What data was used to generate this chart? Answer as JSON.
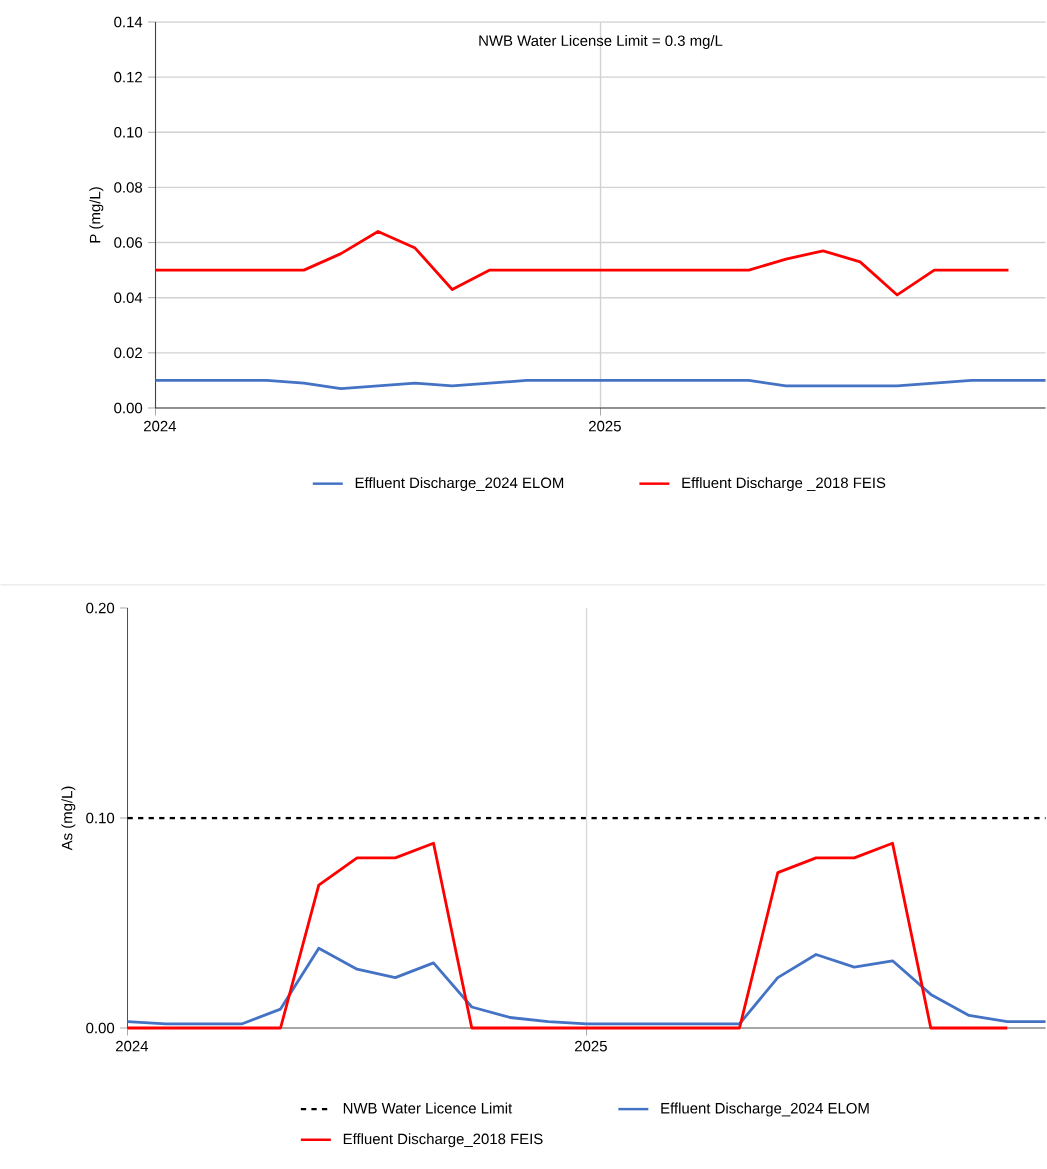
{
  "chart_data": [
    {
      "type": "line",
      "ylabel": "P (mg/L)",
      "annotations": [
        "NWB Water License Limit = 0.3 mg/L"
      ],
      "xlim": [
        "2024-01",
        "2026-01"
      ],
      "xticks": [
        "2024",
        "2025"
      ],
      "ylim": [
        0,
        0.14
      ],
      "yticks": [
        {
          "value": 0,
          "label": "0.00"
        },
        {
          "value": 0.02,
          "label": "0.02"
        },
        {
          "value": 0.04,
          "label": "0.04"
        },
        {
          "value": 0.06,
          "label": "0.06"
        },
        {
          "value": 0.08,
          "label": "0.08"
        },
        {
          "value": 0.1,
          "label": "0.10"
        },
        {
          "value": 0.12,
          "label": "0.12"
        },
        {
          "value": 0.14,
          "label": "0.14"
        }
      ],
      "grid": true,
      "legend": "bottom",
      "series": [
        {
          "name": "Effluent Discharge_2024 ELOM",
          "color": "#4472c4",
          "x": [
            "2024-01",
            "2024-02",
            "2024-03",
            "2024-04",
            "2024-05",
            "2024-06",
            "2024-07",
            "2024-08",
            "2024-09",
            "2024-10",
            "2024-11",
            "2024-12",
            "2025-01",
            "2025-02",
            "2025-03",
            "2025-04",
            "2025-05",
            "2025-06",
            "2025-07",
            "2025-08",
            "2025-09",
            "2025-10",
            "2025-11",
            "2025-12",
            "2026-01"
          ],
          "values": [
            0.01,
            0.01,
            0.01,
            0.01,
            0.009,
            0.007,
            0.008,
            0.009,
            0.008,
            0.009,
            0.01,
            0.01,
            0.01,
            0.01,
            0.01,
            0.01,
            0.01,
            0.008,
            0.008,
            0.008,
            0.008,
            0.009,
            0.01,
            0.01,
            0.01
          ]
        },
        {
          "name": "Effluent Discharge _2018 FEIS",
          "color": "#ff0000",
          "x": [
            "2024-01",
            "2024-02",
            "2024-03",
            "2024-04",
            "2024-05",
            "2024-06",
            "2024-07",
            "2024-08",
            "2024-09",
            "2024-10",
            "2024-11",
            "2024-12",
            "2025-01",
            "2025-02",
            "2025-03",
            "2025-04",
            "2025-05",
            "2025-06",
            "2025-07",
            "2025-08",
            "2025-09",
            "2025-10",
            "2025-11",
            "2025-12"
          ],
          "values": [
            0.05,
            0.05,
            0.05,
            0.05,
            0.05,
            0.056,
            0.064,
            0.058,
            0.043,
            0.05,
            0.05,
            0.05,
            0.05,
            0.05,
            0.05,
            0.05,
            0.05,
            0.054,
            0.057,
            0.053,
            0.041,
            0.05,
            0.05,
            0.05
          ]
        }
      ]
    },
    {
      "type": "line",
      "ylabel": "As (mg/L)",
      "xlim": [
        "2024-01",
        "2026-01"
      ],
      "xticks": [
        "2024",
        "2025"
      ],
      "ylim": [
        0,
        0.2
      ],
      "yticks": [
        {
          "value": 0,
          "label": "0.00"
        },
        {
          "value": 0.1,
          "label": "0.10"
        },
        {
          "value": 0.2,
          "label": "0.20"
        }
      ],
      "legend": "bottom",
      "ref_lines": [
        {
          "axis": "y",
          "value": 0.1,
          "label": "NWB Water Licence Limit",
          "color": "#000000",
          "line_style": "dashed"
        },
        {
          "axis": "x",
          "value": "2025-01",
          "color": "#d9d9d9",
          "line_style": "solid"
        }
      ],
      "series": [
        {
          "name": "Effluent Discharge_2024 ELOM",
          "color": "#4472c4",
          "x": [
            "2024-01",
            "2024-02",
            "2024-03",
            "2024-04",
            "2024-05",
            "2024-06",
            "2024-07",
            "2024-08",
            "2024-09",
            "2024-10",
            "2024-11",
            "2024-12",
            "2025-01",
            "2025-02",
            "2025-03",
            "2025-04",
            "2025-05",
            "2025-06",
            "2025-07",
            "2025-08",
            "2025-09",
            "2025-10",
            "2025-11",
            "2025-12",
            "2026-01"
          ],
          "values": [
            0.003,
            0.002,
            0.002,
            0.002,
            0.009,
            0.038,
            0.028,
            0.024,
            0.031,
            0.01,
            0.005,
            0.003,
            0.002,
            0.002,
            0.002,
            0.002,
            0.002,
            0.024,
            0.035,
            0.029,
            0.032,
            0.016,
            0.006,
            0.003,
            0.003
          ]
        },
        {
          "name": "Effluent Discharge_2018 FEIS",
          "color": "#ff0000",
          "x": [
            "2024-01",
            "2024-02",
            "2024-03",
            "2024-04",
            "2024-05",
            "2024-06",
            "2024-07",
            "2024-08",
            "2024-09",
            "2024-10",
            "2024-11",
            "2024-12",
            "2025-01",
            "2025-02",
            "2025-03",
            "2025-04",
            "2025-05",
            "2025-06",
            "2025-07",
            "2025-08",
            "2025-09",
            "2025-10",
            "2025-11",
            "2025-12"
          ],
          "values": [
            0,
            0,
            0,
            0,
            0,
            0.068,
            0.081,
            0.081,
            0.088,
            0,
            0,
            0,
            0,
            0,
            0,
            0,
            0,
            0.074,
            0.081,
            0.081,
            0.088,
            0,
            0,
            0
          ]
        }
      ]
    }
  ]
}
